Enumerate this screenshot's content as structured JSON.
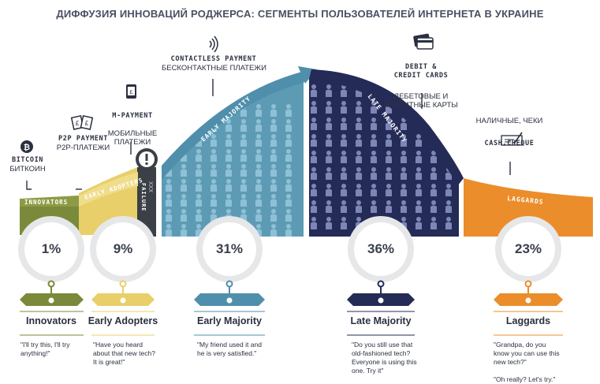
{
  "title": "ДИФФУЗИЯ ИННОВАЦИЙ РОДЖЕРСА: СЕГМЕНТЫ ПОЛЬЗОВАТЕЛЕЙ ИНТЕРНЕТА В УКРАИНЕ",
  "colors": {
    "innovators": "#7a8a3a",
    "early_adopters": "#e8cf6a",
    "early_majority": "#4f8fab",
    "late_majority": "#252b57",
    "laggards": "#eb8d2b",
    "failure": "#3b3f46"
  },
  "payments": [
    {
      "id": "bitcoin",
      "icon": "bitcoin-icon",
      "en": "BITCOIN",
      "ru": "БИТКОИН"
    },
    {
      "id": "p2p",
      "icon": "pound-cards-icon",
      "en": "P2P PAYMENT",
      "ru": "P2P-ПЛАТЕЖИ"
    },
    {
      "id": "mpayment",
      "icon": "phone-pound-icon",
      "en": "M-PAYMENT",
      "ru": "МОБИЛЬНЫЕ\nПЛАТЕЖИ"
    },
    {
      "id": "contactless",
      "icon": "contactless-icon",
      "en": "CONTACTLESS PAYMENT",
      "ru": "БЕСКОНТАКТНЫЕ ПЛАТЕЖИ"
    },
    {
      "id": "debit",
      "icon": "credit-card-icon",
      "en": "DEBIT &\nCREDIT CARDS",
      "ru": "ДЕБЕТОВЫЕ И\nКРЕДИТНЫЕ КАРТЫ"
    },
    {
      "id": "cash",
      "icon": "cheque-icon",
      "en": "CASH,CHEQUE",
      "ru": "НАЛИЧНЫЕ, ЧЕКИ"
    }
  ],
  "bands": {
    "innovators": "INNOVATORS",
    "early_adopters": "EARLY ADOPTERS",
    "failure": "FAILURE",
    "early_majority": "EARLY MAJORITY",
    "late_majority": "LATE MAJORITY",
    "laggards": "LAGGARDS"
  },
  "segments": [
    {
      "key": "innovators",
      "share": 1,
      "percent": "1%",
      "label": "Innovators",
      "quote": "\"I'll try this, I'll try\nanything!\""
    },
    {
      "key": "early_adopters",
      "share": 9,
      "percent": "9%",
      "label": "Early Adopters",
      "quote": "\"Have you heard\nabout that new tech?\nIt is great!\""
    },
    {
      "key": "early_majority",
      "share": 31,
      "percent": "31%",
      "label": "Early Majority",
      "quote": "\"My friend used it and\nhe is very satisfied.\""
    },
    {
      "key": "late_majority",
      "share": 36,
      "percent": "36%",
      "label": "Late Majority",
      "quote": "\"Do you still use that\nold-fashioned tech?\nEveryone is using this\none. Try it\""
    },
    {
      "key": "laggards",
      "share": 23,
      "percent": "23%",
      "label": "Laggards",
      "quote": "\"Grandpa, do you\nknow you can use this\nnew tech?\"\n\n\"Oh really? Let's try.\""
    }
  ],
  "failure_marks": "XXX"
}
